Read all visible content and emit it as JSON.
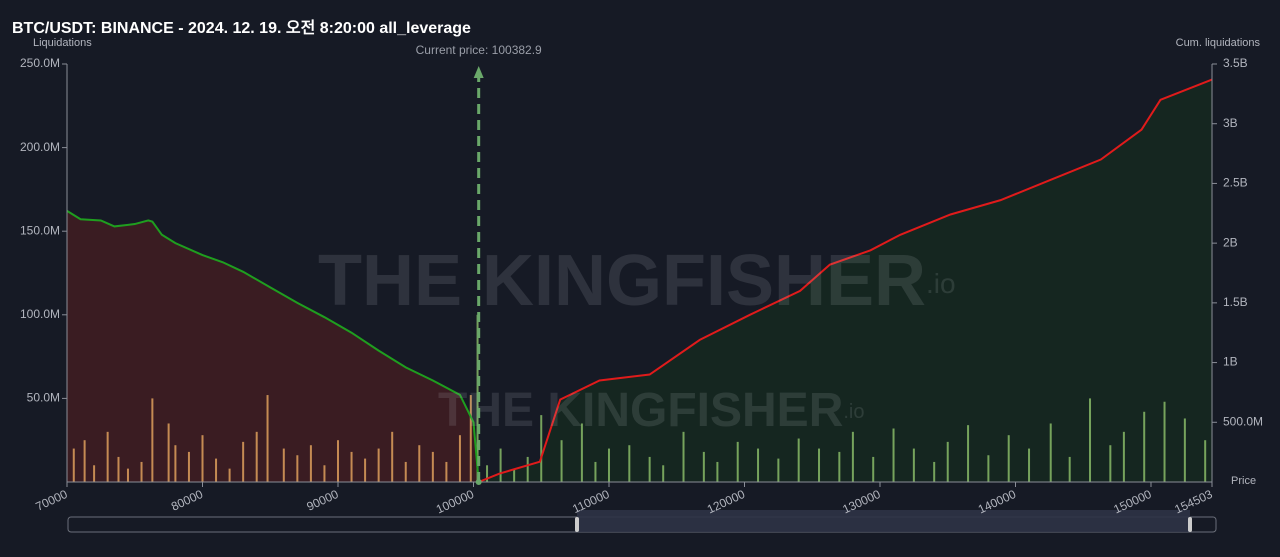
{
  "chart_data": {
    "type": "liquidation",
    "title": "BTC/USDT: BINANCE - 2024. 12. 19. 오전 8:20:00 all_leverage",
    "y_label": "Liquidations",
    "y2_label": "Cum. liquidations",
    "x_label": "Price",
    "watermark": "THE KINGFISHER",
    "watermark_suffix": ".io",
    "current_price": {
      "label": "Current price:",
      "value": 100382.9,
      "color": "#6aa86a"
    },
    "xlim": [
      70000,
      154503
    ],
    "xticks": [
      70000,
      80000,
      90000,
      100000,
      110000,
      120000,
      130000,
      140000,
      150000,
      154503
    ],
    "ylim": [
      0,
      250000000
    ],
    "yticks": [
      {
        "value": 50000000,
        "label": "50.0M"
      },
      {
        "value": 100000000,
        "label": "100.0M"
      },
      {
        "value": 150000000,
        "label": "150.0M"
      },
      {
        "value": 200000000,
        "label": "200.0M"
      },
      {
        "value": 250000000,
        "label": "250.0M"
      }
    ],
    "y2lim": [
      0,
      3500000000
    ],
    "y2ticks": [
      {
        "value": 500000000,
        "label": "500.0M"
      },
      {
        "value": 1000000000,
        "label": "1B"
      },
      {
        "value": 1500000000,
        "label": "1.5B"
      },
      {
        "value": 2000000000,
        "label": "2B"
      },
      {
        "value": 2500000000,
        "label": "2.5B"
      },
      {
        "value": 3000000000,
        "label": "3B"
      },
      {
        "value": 3500000000,
        "label": "3.5B"
      }
    ],
    "bars_below": {
      "color": "#e8a860",
      "x": [
        70500,
        71300,
        72000,
        73000,
        73800,
        74500,
        75500,
        76300,
        77500,
        78000,
        79000,
        80000,
        81000,
        82000,
        83000,
        84000,
        84800,
        86000,
        87000,
        88000,
        89000,
        90000,
        91000,
        92000,
        93000,
        94000,
        95000,
        96000,
        97000,
        98000,
        99000,
        99800
      ],
      "values": [
        20000000,
        25000000,
        10000000,
        30000000,
        15000000,
        8000000,
        12000000,
        50000000,
        35000000,
        22000000,
        18000000,
        28000000,
        14000000,
        8000000,
        24000000,
        30000000,
        52000000,
        20000000,
        16000000,
        22000000,
        10000000,
        25000000,
        18000000,
        14000000,
        20000000,
        30000000,
        12000000,
        22000000,
        18000000,
        12000000,
        28000000,
        52000000
      ]
    },
    "bars_above": {
      "color": "#8fc36b",
      "x": [
        100300,
        101000,
        102000,
        103000,
        104000,
        105000,
        106500,
        108000,
        109000,
        110000,
        111500,
        113000,
        114000,
        115500,
        117000,
        118000,
        119500,
        121000,
        122500,
        124000,
        125500,
        127000,
        128000,
        129500,
        131000,
        132500,
        134000,
        135000,
        136500,
        138000,
        139500,
        141000,
        142600,
        144000,
        145500,
        147000,
        148000,
        149500,
        151000,
        152500,
        154000
      ],
      "values": [
        100000000,
        10000000,
        20000000,
        8000000,
        15000000,
        40000000,
        25000000,
        35000000,
        12000000,
        20000000,
        22000000,
        15000000,
        10000000,
        30000000,
        18000000,
        12000000,
        24000000,
        20000000,
        14000000,
        26000000,
        20000000,
        18000000,
        30000000,
        15000000,
        32000000,
        20000000,
        12000000,
        24000000,
        34000000,
        16000000,
        28000000,
        20000000,
        35000000,
        15000000,
        50000000,
        22000000,
        30000000,
        42000000,
        48000000,
        38000000,
        25000000
      ]
    },
    "cum_short": {
      "color": "#1f9e1f",
      "fill": "#3a1c22",
      "axis": "y2",
      "x": [
        70000,
        71000,
        72500,
        73500,
        75000,
        76000,
        76300,
        77000,
        78000,
        80000,
        81500,
        83000,
        85000,
        87000,
        89000,
        91000,
        93000,
        95000,
        97000,
        99000,
        100000,
        100383
      ],
      "values": [
        2270000000,
        2200000000,
        2190000000,
        2140000000,
        2160000000,
        2190000000,
        2180000000,
        2070000000,
        2000000000,
        1900000000,
        1840000000,
        1760000000,
        1630000000,
        1500000000,
        1380000000,
        1250000000,
        1100000000,
        960000000,
        850000000,
        730000000,
        500000000,
        0
      ]
    },
    "cum_long": {
      "color": "#e01b1b",
      "fill": "#152620",
      "axis": "y2",
      "x": [
        100383,
        101900,
        104900,
        106400,
        109300,
        113000,
        116700,
        120400,
        124100,
        126300,
        129300,
        131500,
        135200,
        138900,
        142600,
        146300,
        149300,
        150700,
        154503
      ],
      "values": [
        0,
        70000000,
        170000000,
        690000000,
        850000000,
        900000000,
        1190000000,
        1400000000,
        1600000000,
        1820000000,
        1940000000,
        2070000000,
        2240000000,
        2360000000,
        2530000000,
        2700000000,
        2950000000,
        3200000000,
        3370000000
      ]
    }
  }
}
